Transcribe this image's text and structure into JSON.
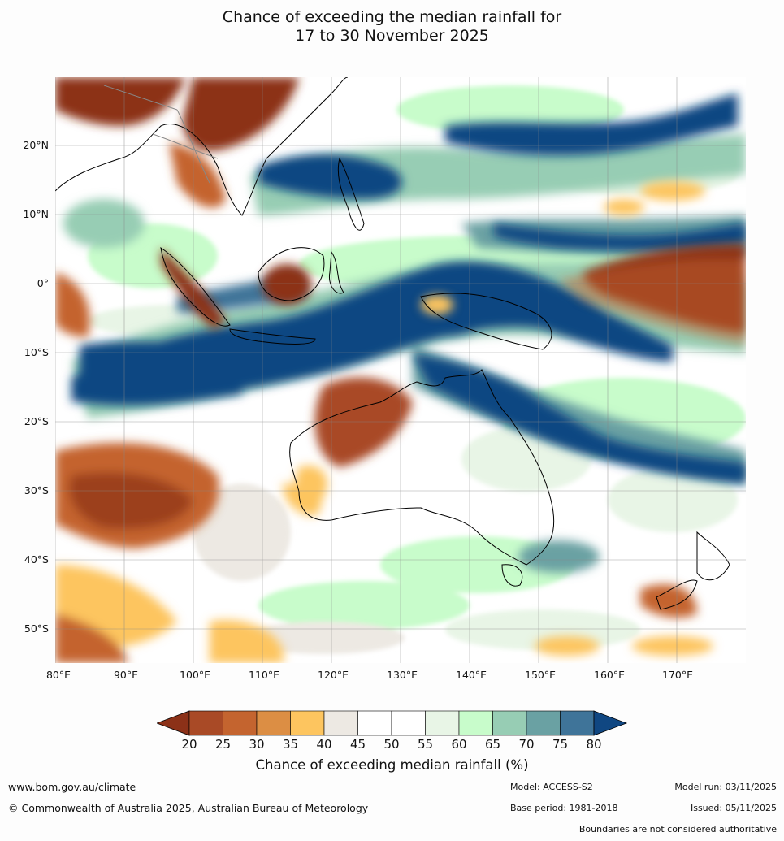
{
  "title": {
    "line1": "Chance of exceeding the median rainfall for",
    "line2": "17 to 30 November 2025"
  },
  "map": {
    "region": "Australia and surrounding region",
    "lat_labels": [
      "20°N",
      "10°N",
      "0°",
      "10°S",
      "20°S",
      "30°S",
      "40°S",
      "50°S"
    ],
    "lon_labels": [
      "80°E",
      "90°E",
      "100°E",
      "110°E",
      "120°E",
      "130°E",
      "140°E",
      "150°E",
      "160°E",
      "170°E"
    ]
  },
  "colorbar": {
    "ticks": [
      "20",
      "25",
      "30",
      "35",
      "40",
      "45",
      "50",
      "55",
      "60",
      "65",
      "70",
      "75",
      "80"
    ],
    "colors": [
      "#8c3118",
      "#a94a26",
      "#c4642f",
      "#dc8e44",
      "#fdc55f",
      "#ede9e3",
      "#ffffff",
      "#ffffff",
      "#e8f5e6",
      "#c8fccb",
      "#97cdb4",
      "#6aa1a3",
      "#3f7499",
      "#104782"
    ],
    "label": "Chance of exceeding median rainfall (%)"
  },
  "footer": {
    "website": "www.bom.gov.au/climate",
    "copyright": "© Commonwealth of Australia 2025, Australian Bureau of Meteorology",
    "model": "Model: ACCESS-S2",
    "base_period": "Base period: 1981-2018",
    "model_run": "Model run: 03/11/2025",
    "issued": "Issued: 05/11/2025",
    "disclaimer": "Boundaries are not considered authoritative"
  }
}
